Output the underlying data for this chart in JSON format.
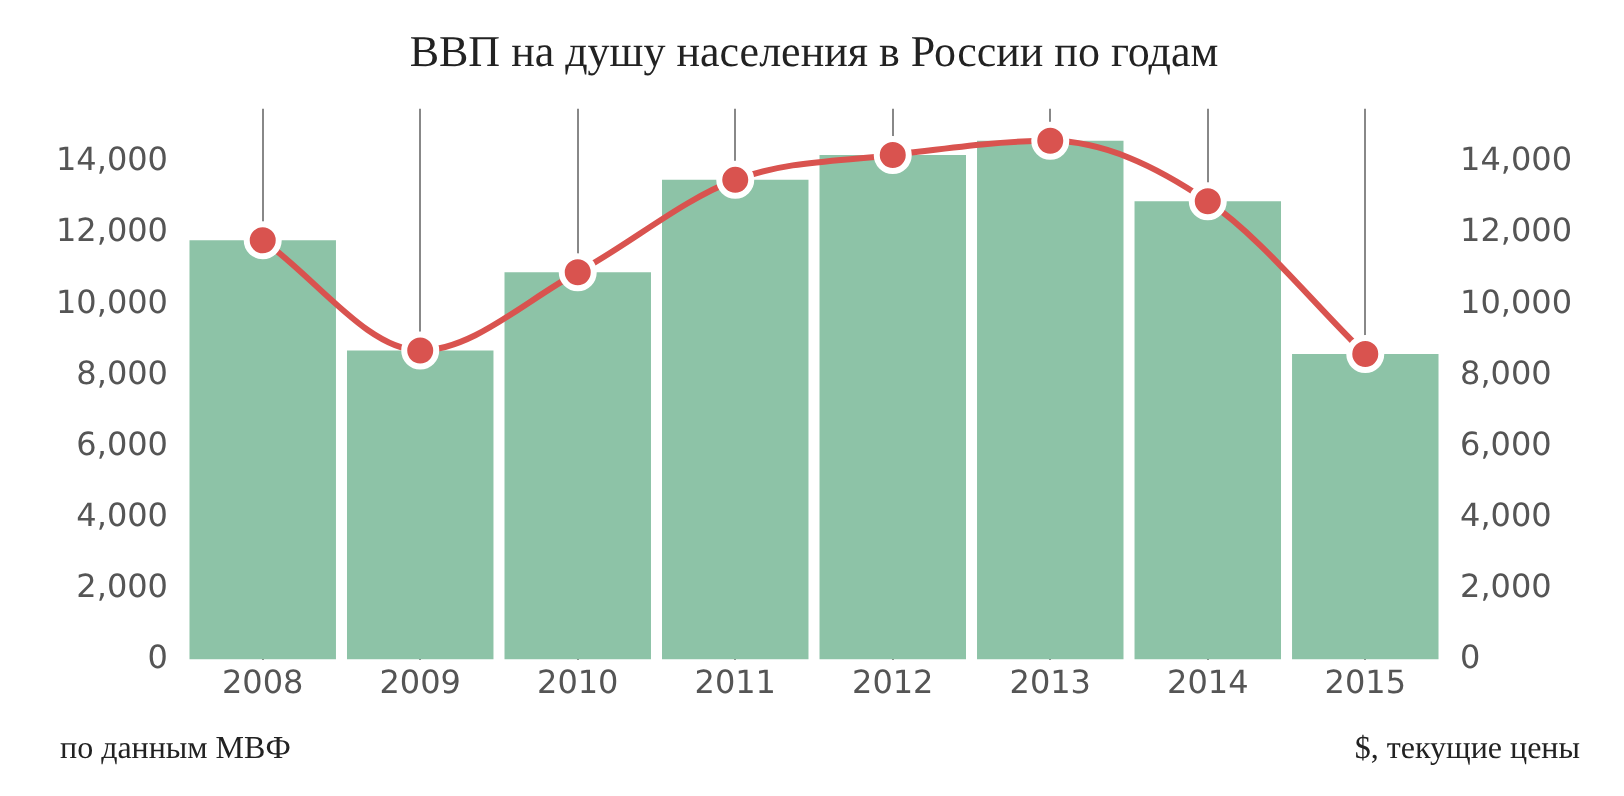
{
  "chart_data": {
    "type": "bar",
    "title": "ВВП на душу населения в России по годам",
    "categories": [
      "2008",
      "2009",
      "2010",
      "2011",
      "2012",
      "2013",
      "2014",
      "2015"
    ],
    "series": [
      {
        "color": "#8dc3a7",
        "values": [
          11800,
          8700,
          10900,
          13500,
          14200,
          14600,
          12900,
          8600
        ]
      },
      {
        "type": "line",
        "axis": "y2",
        "color": "#d9534f",
        "marker": "circle",
        "values": [
          11800,
          8700,
          10900,
          13500,
          14200,
          14600,
          12900,
          8600
        ]
      }
    ],
    "ylim": [
      0,
      15500
    ],
    "yticks": [
      {
        "value": 0,
        "label": "0"
      },
      {
        "value": 2000,
        "label": "2,000"
      },
      {
        "value": 4000,
        "label": "4,000"
      },
      {
        "value": 6000,
        "label": "6,000"
      },
      {
        "value": 8000,
        "label": "8,000"
      },
      {
        "value": 10000,
        "label": "10,000"
      },
      {
        "value": 12000,
        "label": "12,000"
      },
      {
        "value": 14000,
        "label": "14,000"
      }
    ],
    "y2lim": [
      0,
      15500
    ],
    "y2ticks": [
      {
        "value": 0,
        "label": "0"
      },
      {
        "value": 2000,
        "label": "2,000"
      },
      {
        "value": 4000,
        "label": "4,000"
      },
      {
        "value": 6000,
        "label": "6,000"
      },
      {
        "value": 8000,
        "label": "8,000"
      },
      {
        "value": 10000,
        "label": "10,000"
      },
      {
        "value": 12000,
        "label": "12,000"
      },
      {
        "value": 14000,
        "label": "14,000"
      }
    ],
    "grid": "x",
    "legend": false,
    "annotations": [
      "по данным МВФ",
      "$, текущие цены"
    ]
  }
}
